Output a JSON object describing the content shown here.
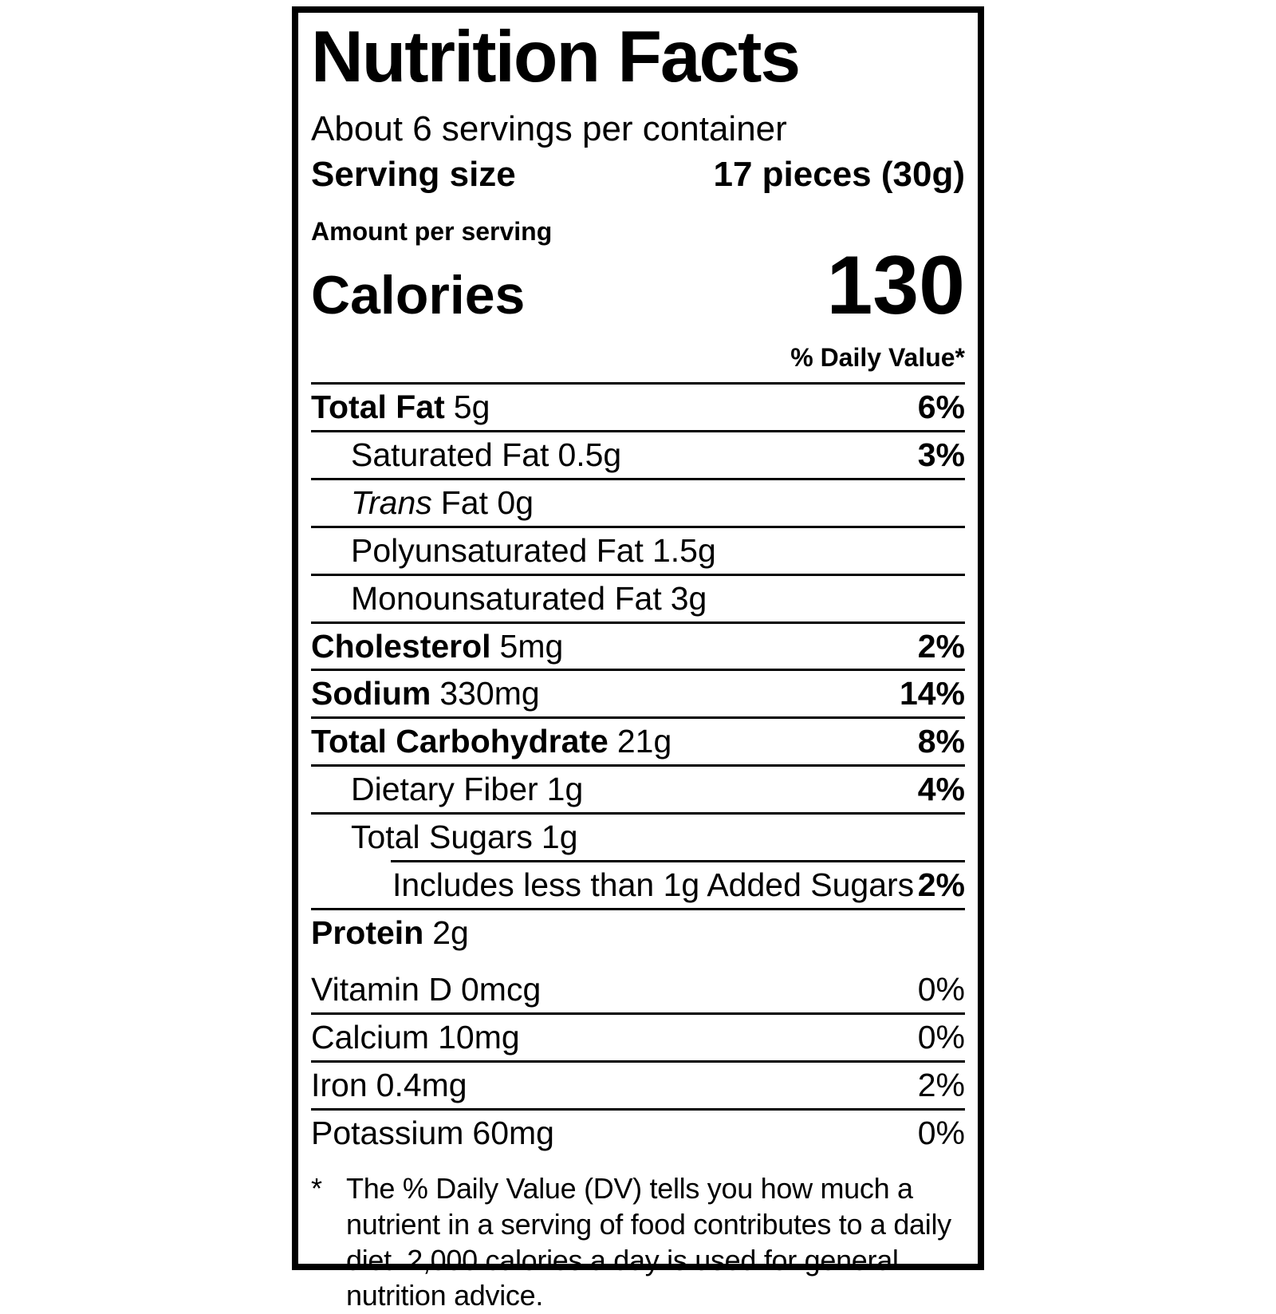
{
  "label": {
    "title": "Nutrition Facts",
    "servings_per_container": "About 6 servings per container",
    "serving_size_label": "Serving size",
    "serving_size_value": "17 pieces (30g)",
    "amount_per_serving": "Amount per serving",
    "calories_label": "Calories",
    "calories_value": "130",
    "daily_value_header": "% Daily Value*",
    "nutrients": [
      {
        "name": "Total Fat",
        "amount": "5g",
        "dv": "6%"
      },
      {
        "name": "Saturated Fat",
        "amount": "0.5g",
        "dv": "3%"
      },
      {
        "name": "Trans",
        "amount": "Fat 0g",
        "dv": ""
      },
      {
        "name": "Polyunsaturated Fat",
        "amount": "1.5g",
        "dv": ""
      },
      {
        "name": "Monounsaturated Fat",
        "amount": "3g",
        "dv": ""
      },
      {
        "name": "Cholesterol",
        "amount": "5mg",
        "dv": "2%"
      },
      {
        "name": "Sodium",
        "amount": "330mg",
        "dv": "14%"
      },
      {
        "name": "Total Carbohydrate",
        "amount": "21g",
        "dv": "8%"
      },
      {
        "name": "Dietary Fiber",
        "amount": "1g",
        "dv": "4%"
      },
      {
        "name": "Total Sugars",
        "amount": "1g",
        "dv": ""
      },
      {
        "name": "Includes less than 1g Added Sugars",
        "amount": "",
        "dv": "2%"
      },
      {
        "name": "Protein",
        "amount": "2g",
        "dv": ""
      }
    ],
    "micronutrients": [
      {
        "name": "Vitamin D",
        "amount": "0mcg",
        "dv": "0%"
      },
      {
        "name": "Calcium",
        "amount": "10mg",
        "dv": "0%"
      },
      {
        "name": "Iron",
        "amount": "0.4mg",
        "dv": "2%"
      },
      {
        "name": "Potassium",
        "amount": "60mg",
        "dv": "0%"
      }
    ],
    "footnote_marker": "*",
    "footnote": "The % Daily Value (DV) tells you how much a nutrient in a serving of food contributes to a daily diet. 2,000 calories a day is used for general nutrition advice.",
    "colors": {
      "ink": "#000000",
      "paper": "#ffffff"
    }
  }
}
